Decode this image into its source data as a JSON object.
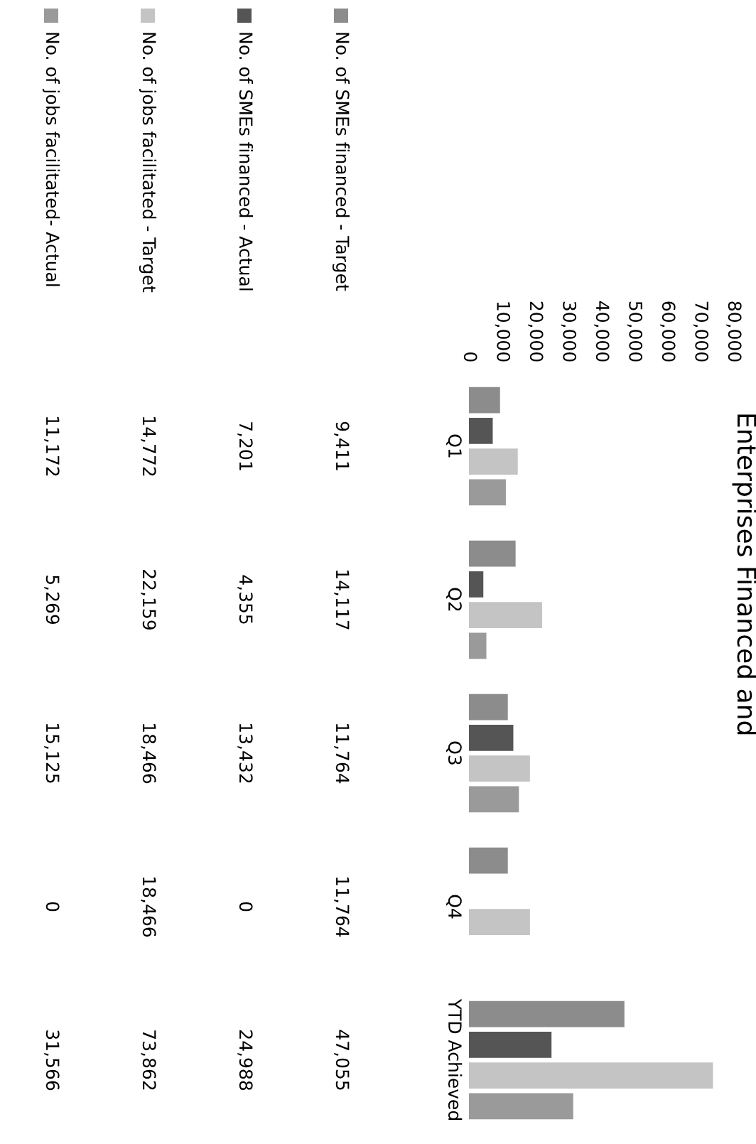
{
  "chart_data": {
    "type": "bar",
    "orientation": "horizontal",
    "title": "Enterprises Financed and",
    "categories": [
      "Q1",
      "Q2",
      "Q3",
      "Q4",
      "YTD Achieved"
    ],
    "series": [
      {
        "name": "No. of SMEs financed - Target",
        "color": "#8c8c8c",
        "values": [
          9411,
          14117,
          11764,
          11764,
          47055
        ],
        "value_labels": [
          "9,411",
          "14,117",
          "11,764",
          "11,764",
          "47,055"
        ]
      },
      {
        "name": "No. of SMEs financed - Actual",
        "color": "#555555",
        "values": [
          7201,
          4355,
          13432,
          0,
          24988
        ],
        "value_labels": [
          "7,201",
          "4,355",
          "13,432",
          "0",
          "24,988"
        ]
      },
      {
        "name": "No. of jobs facilitated - Target",
        "color": "#c4c4c4",
        "values": [
          14772,
          22159,
          18466,
          18466,
          73862
        ],
        "value_labels": [
          "14,772",
          "22,159",
          "18,466",
          "18,466",
          "73,862"
        ]
      },
      {
        "name": "No. of jobs facilitated- Actual",
        "color": "#9a9a9a",
        "values": [
          11172,
          5269,
          15125,
          0,
          31566
        ],
        "value_labels": [
          "11,172",
          "5,269",
          "15,125",
          "0",
          "31,566"
        ]
      }
    ],
    "xlim": [
      0,
      80000
    ],
    "xticks": [
      {
        "value": 0,
        "label": "0"
      },
      {
        "value": 10000,
        "label": "10,000"
      },
      {
        "value": 20000,
        "label": "20,000"
      },
      {
        "value": 30000,
        "label": "30,000"
      },
      {
        "value": 40000,
        "label": "40,000"
      },
      {
        "value": 50000,
        "label": "50,000"
      },
      {
        "value": 60000,
        "label": "60,000"
      },
      {
        "value": 70000,
        "label": "70,000"
      },
      {
        "value": 80000,
        "label": "80,000"
      }
    ],
    "grid": false,
    "legend": "left"
  }
}
